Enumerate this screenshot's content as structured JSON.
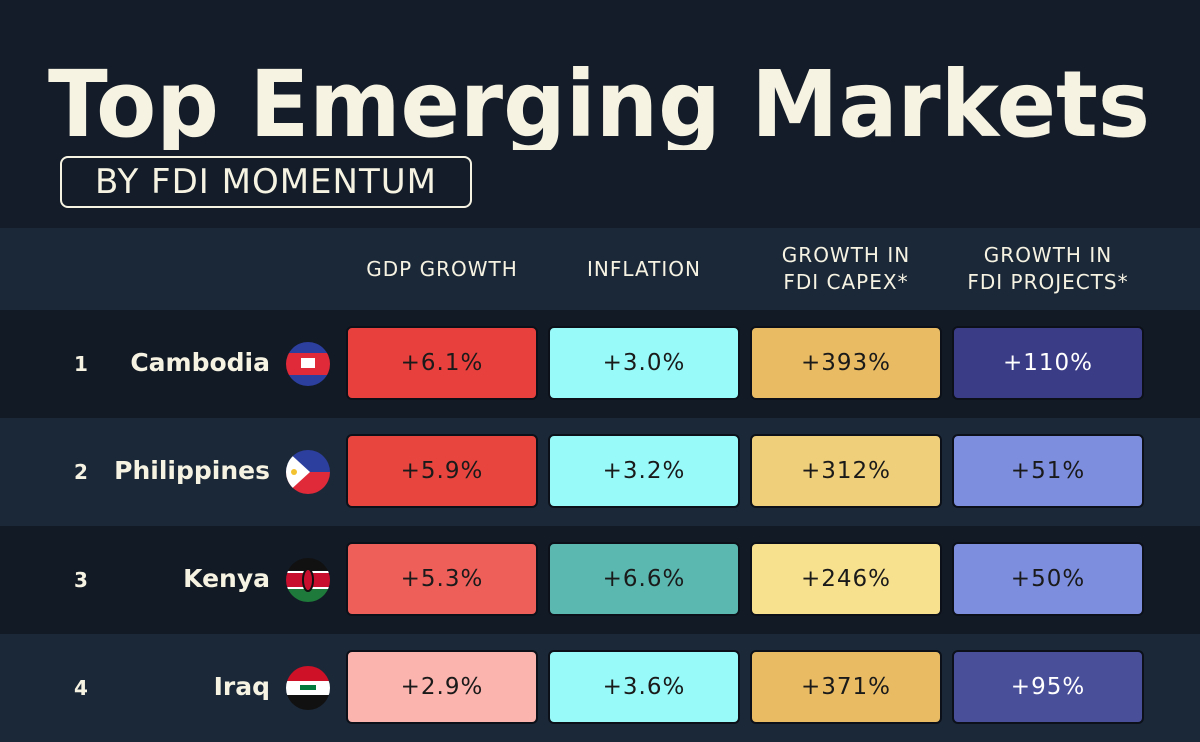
{
  "title": "Top Emerging Markets",
  "subtitle": "BY FDI MOMENTUM",
  "columns": [
    "GDP GROWTH",
    "INFLATION",
    "GROWTH IN\nFDI CAPEX*",
    "GROWTH IN\nFDI PROJECTS*"
  ],
  "rows": [
    {
      "rank": 1,
      "country": "Cambodia",
      "cells": [
        "+6.1%",
        "+3.0%",
        "+393%",
        "+110%"
      ],
      "colors": [
        "#e8403d",
        "#99fafa",
        "#e9bb63",
        "#3b3c86"
      ]
    },
    {
      "rank": 2,
      "country": "Philippines",
      "cells": [
        "+5.9%",
        "+3.2%",
        "+312%",
        "+51%"
      ],
      "colors": [
        "#e8453f",
        "#99fafa",
        "#f0cf7a",
        "#7d8edf"
      ]
    },
    {
      "rank": 3,
      "country": "Kenya",
      "cells": [
        "+5.3%",
        "+6.6%",
        "+246%",
        "+50%"
      ],
      "colors": [
        "#ee5f5a",
        "#5bb8b0",
        "#f7e08e",
        "#7d8edf"
      ]
    },
    {
      "rank": 4,
      "country": "Iraq",
      "cells": [
        "+2.9%",
        "+3.6%",
        "+371%",
        "+95%"
      ],
      "colors": [
        "#fbb4ae",
        "#99fafa",
        "#e9bb63",
        "#4a4f9a"
      ]
    }
  ]
}
